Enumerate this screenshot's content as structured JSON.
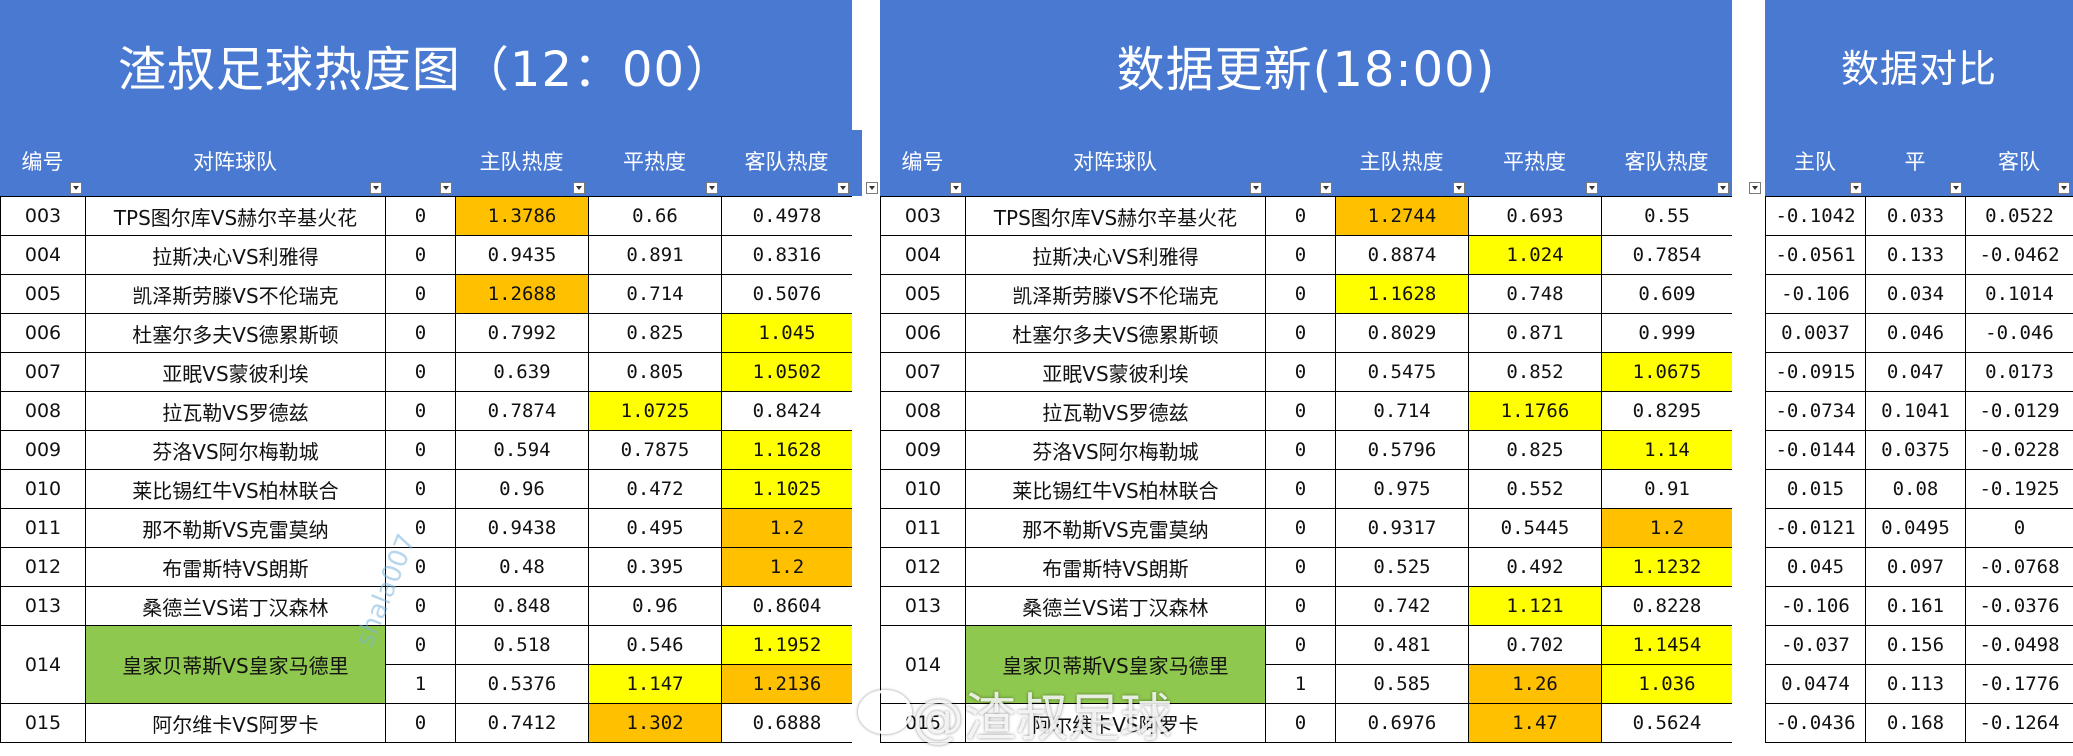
{
  "panels": {
    "p1": {
      "title": "渣叔足球热度图（12：00）",
      "headers": [
        "编号",
        "对阵球队",
        "",
        "主队热度",
        "平热度",
        "客队热度"
      ],
      "rows": [
        {
          "id": "003",
          "team": "TPS图尔库VS赫尔辛基火花",
          "flag": "0",
          "home": "1.3786",
          "draw": "0.66",
          "away": "0.4978"
        },
        {
          "id": "004",
          "team": "拉斯决心VS利雅得",
          "flag": "0",
          "home": "0.9435",
          "draw": "0.891",
          "away": "0.8316"
        },
        {
          "id": "005",
          "team": "凯泽斯劳滕VS不伦瑞克",
          "flag": "0",
          "home": "1.2688",
          "draw": "0.714",
          "away": "0.5076"
        },
        {
          "id": "006",
          "team": "杜塞尔多夫VS德累斯顿",
          "flag": "0",
          "home": "0.7992",
          "draw": "0.825",
          "away": "1.045"
        },
        {
          "id": "007",
          "team": "亚眠VS蒙彼利埃",
          "flag": "0",
          "home": "0.639",
          "draw": "0.805",
          "away": "1.0502"
        },
        {
          "id": "008",
          "team": "拉瓦勒VS罗德兹",
          "flag": "0",
          "home": "0.7874",
          "draw": "1.0725",
          "away": "0.8424"
        },
        {
          "id": "009",
          "team": "芬洛VS阿尔梅勒城",
          "flag": "0",
          "home": "0.594",
          "draw": "0.7875",
          "away": "1.1628"
        },
        {
          "id": "010",
          "team": "莱比锡红牛VS柏林联合",
          "flag": "0",
          "home": "0.96",
          "draw": "0.472",
          "away": "1.1025"
        },
        {
          "id": "011",
          "team": "那不勒斯VS克雷莫纳",
          "flag": "0",
          "home": "0.9438",
          "draw": "0.495",
          "away": "1.2"
        },
        {
          "id": "012",
          "team": "布雷斯特VS朗斯",
          "flag": "0",
          "home": "0.48",
          "draw": "0.395",
          "away": "1.2"
        },
        {
          "id": "013",
          "team": "桑德兰VS诺丁汉森林",
          "flag": "0",
          "home": "0.848",
          "draw": "0.96",
          "away": "0.8604"
        }
      ],
      "r014": {
        "id": "014",
        "team": "皇家贝蒂斯VS皇家马德里",
        "a": {
          "flag": "0",
          "home": "0.518",
          "draw": "0.546",
          "away": "1.1952"
        },
        "b": {
          "flag": "1",
          "home": "0.5376",
          "draw": "1.147",
          "away": "1.2136"
        }
      },
      "r015": {
        "id": "015",
        "team": "阿尔维卡VS阿罗卡",
        "flag": "0",
        "home": "0.7412",
        "draw": "1.302",
        "away": "0.6888"
      }
    },
    "p2": {
      "title": "数据更新(18:00)",
      "headers": [
        "编号",
        "对阵球队",
        "",
        "主队热度",
        "平热度",
        "客队热度"
      ],
      "rows": [
        {
          "id": "003",
          "team": "TPS图尔库VS赫尔辛基火花",
          "flag": "0",
          "home": "1.2744",
          "draw": "0.693",
          "away": "0.55"
        },
        {
          "id": "004",
          "team": "拉斯决心VS利雅得",
          "flag": "0",
          "home": "0.8874",
          "draw": "1.024",
          "away": "0.7854"
        },
        {
          "id": "005",
          "team": "凯泽斯劳滕VS不伦瑞克",
          "flag": "0",
          "home": "1.1628",
          "draw": "0.748",
          "away": "0.609"
        },
        {
          "id": "006",
          "team": "杜塞尔多夫VS德累斯顿",
          "flag": "0",
          "home": "0.8029",
          "draw": "0.871",
          "away": "0.999"
        },
        {
          "id": "007",
          "team": "亚眠VS蒙彼利埃",
          "flag": "0",
          "home": "0.5475",
          "draw": "0.852",
          "away": "1.0675"
        },
        {
          "id": "008",
          "team": "拉瓦勒VS罗德兹",
          "flag": "0",
          "home": "0.714",
          "draw": "1.1766",
          "away": "0.8295"
        },
        {
          "id": "009",
          "team": "芬洛VS阿尔梅勒城",
          "flag": "0",
          "home": "0.5796",
          "draw": "0.825",
          "away": "1.14"
        },
        {
          "id": "010",
          "team": "莱比锡红牛VS柏林联合",
          "flag": "0",
          "home": "0.975",
          "draw": "0.552",
          "away": "0.91"
        },
        {
          "id": "011",
          "team": "那不勒斯VS克雷莫纳",
          "flag": "0",
          "home": "0.9317",
          "draw": "0.5445",
          "away": "1.2"
        },
        {
          "id": "012",
          "team": "布雷斯特VS朗斯",
          "flag": "0",
          "home": "0.525",
          "draw": "0.492",
          "away": "1.1232"
        },
        {
          "id": "013",
          "team": "桑德兰VS诺丁汉森林",
          "flag": "0",
          "home": "0.742",
          "draw": "1.121",
          "away": "0.8228"
        }
      ],
      "r014": {
        "id": "014",
        "team": "皇家贝蒂斯VS皇家马德里",
        "a": {
          "flag": "0",
          "home": "0.481",
          "draw": "0.702",
          "away": "1.1454"
        },
        "b": {
          "flag": "1",
          "home": "0.585",
          "draw": "1.26",
          "away": "1.036"
        }
      },
      "r015": {
        "id": "015",
        "team": "阿尔维卡VS阿罗卡",
        "flag": "0",
        "home": "0.6976",
        "draw": "1.47",
        "away": "0.5624"
      }
    },
    "p3": {
      "title": "数据对比",
      "headers": [
        "主队",
        "平",
        "客队"
      ],
      "rows": [
        {
          "home": "-0.1042",
          "draw": "0.033",
          "away": "0.0522"
        },
        {
          "home": "-0.0561",
          "draw": "0.133",
          "away": "-0.0462"
        },
        {
          "home": "-0.106",
          "draw": "0.034",
          "away": "0.1014"
        },
        {
          "home": "0.0037",
          "draw": "0.046",
          "away": "-0.046"
        },
        {
          "home": "-0.0915",
          "draw": "0.047",
          "away": "0.0173"
        },
        {
          "home": "-0.0734",
          "draw": "0.1041",
          "away": "-0.0129"
        },
        {
          "home": "-0.0144",
          "draw": "0.0375",
          "away": "-0.0228"
        },
        {
          "home": "0.015",
          "draw": "0.08",
          "away": "-0.1925"
        },
        {
          "home": "-0.0121",
          "draw": "0.0495",
          "away": "0"
        },
        {
          "home": "0.045",
          "draw": "0.097",
          "away": "-0.0768"
        },
        {
          "home": "-0.106",
          "draw": "0.161",
          "away": "-0.0376"
        },
        {
          "home": "-0.037",
          "draw": "0.156",
          "away": "-0.0498"
        },
        {
          "home": "0.0474",
          "draw": "0.113",
          "away": "-0.1776"
        },
        {
          "home": "-0.0436",
          "draw": "0.168",
          "away": "-0.1264"
        }
      ]
    }
  },
  "watermark": {
    "text": "@渣叔足球",
    "diag": "shala007"
  },
  "colors": {
    "header": "#4a79d2",
    "yellow": "#ffff00",
    "orange": "#ffc000",
    "green": "#8fc84f"
  }
}
